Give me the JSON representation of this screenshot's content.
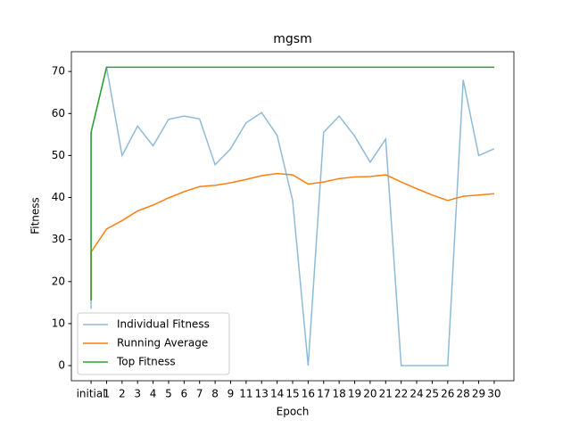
{
  "chart_data": {
    "type": "line",
    "title": "mgsm",
    "x_label": "Epoch",
    "y_label": "Fitness",
    "categories": [
      "initial",
      "1",
      "2",
      "3",
      "4",
      "5",
      "6",
      "7",
      "8",
      "9",
      "11",
      "13",
      "14",
      "15",
      "16",
      "17",
      "18",
      "19",
      "20",
      "21",
      "22",
      "24",
      "25",
      "26",
      "28",
      "29",
      "30"
    ],
    "x": [
      "initial",
      "initial",
      "1",
      "2",
      "3",
      "4",
      "5",
      "6",
      "7",
      "8",
      "9",
      "11",
      "13",
      "14",
      "15",
      "16",
      "17",
      "18",
      "19",
      "20",
      "21",
      "22",
      "24",
      "25",
      "26",
      "28",
      "29",
      "30"
    ],
    "series": [
      {
        "name": "Individual Fitness",
        "color": "#1f77b4",
        "opacity": 0.5,
        "values": [
          13.5,
          55.5,
          71,
          50,
          57,
          52.3,
          58.6,
          59.4,
          58.7,
          47.8,
          51.6,
          57.8,
          60.2,
          54.8,
          39.3,
          0,
          55.5,
          59.4,
          54.6,
          48.4,
          53.9,
          0,
          0,
          0,
          0,
          68,
          50,
          51.6
        ]
      },
      {
        "name": "Running Average",
        "color": "#ff7f0e",
        "values": [
          15.5,
          27,
          32.5,
          34.5,
          36.8,
          38.2,
          39.9,
          41.4,
          42.6,
          42.9,
          43.5,
          44.3,
          45.2,
          45.7,
          45.4,
          43.2,
          43.7,
          44.5,
          44.9,
          45.0,
          45.4,
          43.7,
          42.1,
          40.6,
          39.3,
          40.3,
          40.6,
          40.9
        ]
      },
      {
        "name": "Top Fitness",
        "color": "#2ca02c",
        "values": [
          15.5,
          55.5,
          71,
          71,
          71,
          71,
          71,
          71,
          71,
          71,
          71,
          71,
          71,
          71,
          71,
          71,
          71,
          71,
          71,
          71,
          71,
          71,
          71,
          71,
          71,
          71,
          71,
          71
        ]
      }
    ],
    "ylim": [
      -3.6,
      74.7
    ],
    "yticks": [
      0,
      10,
      20,
      30,
      40,
      50,
      60,
      70
    ],
    "legend": "lower left"
  }
}
